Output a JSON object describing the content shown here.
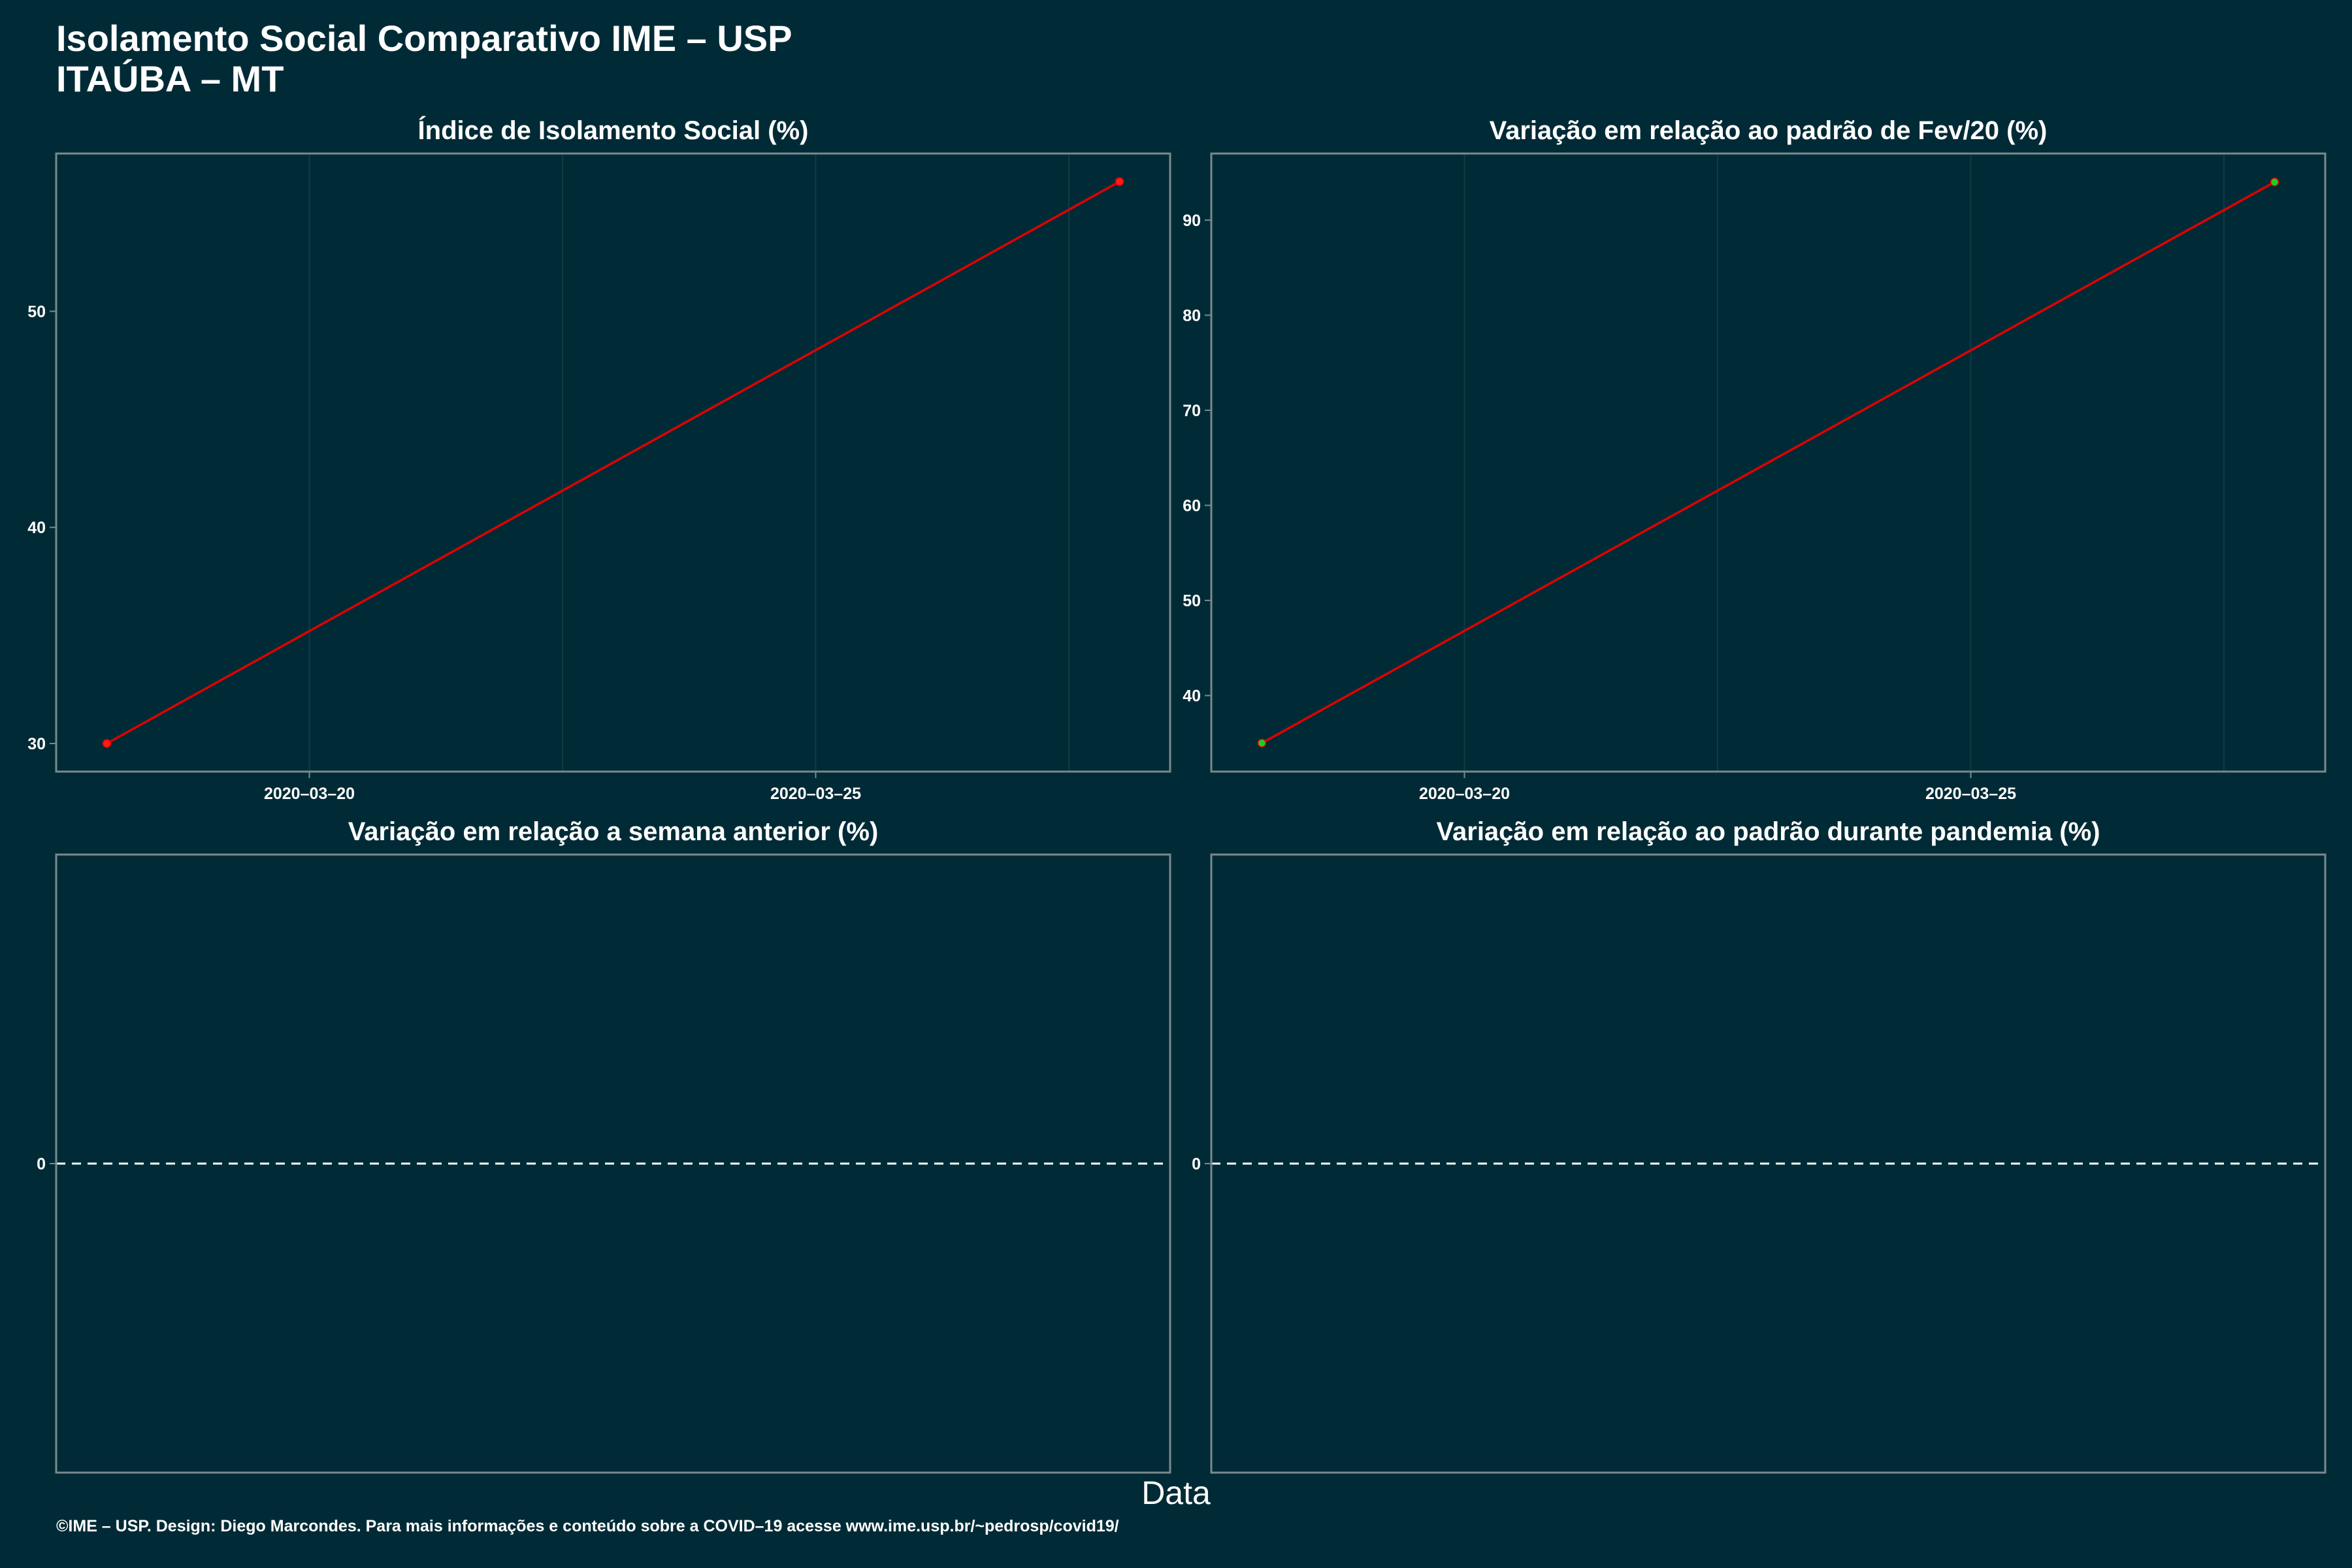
{
  "title": {
    "line1": "Isolamento Social Comparativo IME – USP",
    "line2": "ITAÚBA – MT"
  },
  "xlabel": "Data",
  "footer": "©IME – USP. Design: Diego Marcondes. Para mais informações e conteúdo sobre a COVID–19 acesse www.ime.usp.br/~pedrosp/covid19/",
  "colors": {
    "background": "#002b36",
    "panel_border": "#7a8a8c",
    "grid": "#0f3b45",
    "line": "#e00000",
    "point_red": "#ff1a1a",
    "point_green": "#22cc22",
    "text": "#ffffff"
  },
  "chart_data": [
    {
      "type": "line",
      "title": "Índice de Isolamento Social (%)",
      "x": [
        "2020-03-18",
        "2020-03-28"
      ],
      "y": [
        30,
        56
      ],
      "point_colors": [
        "red",
        "red"
      ],
      "xticks": [
        "2020–03–20",
        "2020–03–25"
      ],
      "xtick_values": [
        "2020-03-20",
        "2020-03-25"
      ],
      "yticks": [
        30,
        40,
        50
      ],
      "xlim": [
        "2020-03-17.5",
        "2020-03-28.5"
      ],
      "ylim": [
        28.7,
        57.3
      ],
      "grid": true
    },
    {
      "type": "line",
      "title": "Variação em relação ao padrão de Fev/20 (%)",
      "x": [
        "2020-03-18",
        "2020-03-28"
      ],
      "y": [
        35,
        94
      ],
      "point_colors": [
        "green",
        "green"
      ],
      "xticks": [
        "2020–03–20",
        "2020–03–25"
      ],
      "xtick_values": [
        "2020-03-20",
        "2020-03-25"
      ],
      "yticks": [
        40,
        50,
        60,
        70,
        80,
        90
      ],
      "xlim": [
        "2020-03-17.5",
        "2020-03-28.5"
      ],
      "ylim": [
        32,
        97
      ],
      "grid": true
    },
    {
      "type": "line",
      "title": "Variação em relação a semana anterior (%)",
      "x": [],
      "y": [],
      "yticks": [
        0
      ],
      "reference_line": 0,
      "ylim": [
        -1,
        1
      ],
      "grid": false
    },
    {
      "type": "line",
      "title": "Variação em relação ao padrão durante pandemia (%)",
      "x": [],
      "y": [],
      "yticks": [
        0
      ],
      "reference_line": 0,
      "ylim": [
        -1,
        1
      ],
      "grid": false
    }
  ]
}
